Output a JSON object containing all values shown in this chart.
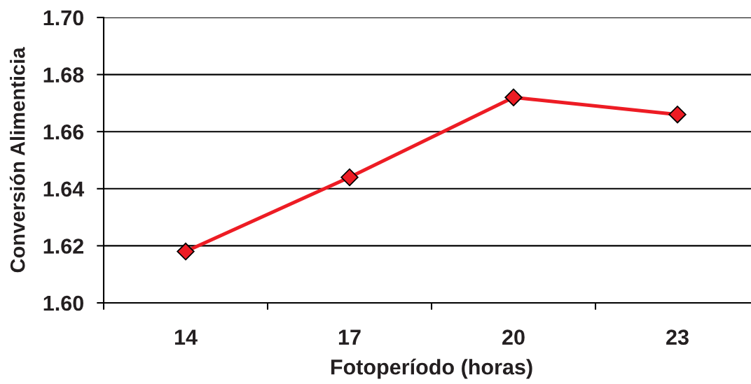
{
  "chart_data": {
    "type": "line",
    "xlabel": "Fotoperíodo (horas)",
    "ylabel": "Conversión Alimenticia",
    "categories": [
      "14",
      "17",
      "20",
      "23"
    ],
    "series": [
      {
        "color": "#ed1c24",
        "values": [
          1.618,
          1.644,
          1.672,
          1.666
        ]
      }
    ],
    "ylim": [
      1.6,
      1.7
    ],
    "yticks": [
      {
        "value": 1.6,
        "label": "1.60"
      },
      {
        "value": 1.62,
        "label": "1.62"
      },
      {
        "value": 1.64,
        "label": "1.64"
      },
      {
        "value": 1.66,
        "label": "1.66"
      },
      {
        "value": 1.68,
        "label": "1.68"
      },
      {
        "value": 1.7,
        "label": "1.70"
      }
    ],
    "grid": "y",
    "marker": "diamond",
    "line_style": "solid"
  }
}
